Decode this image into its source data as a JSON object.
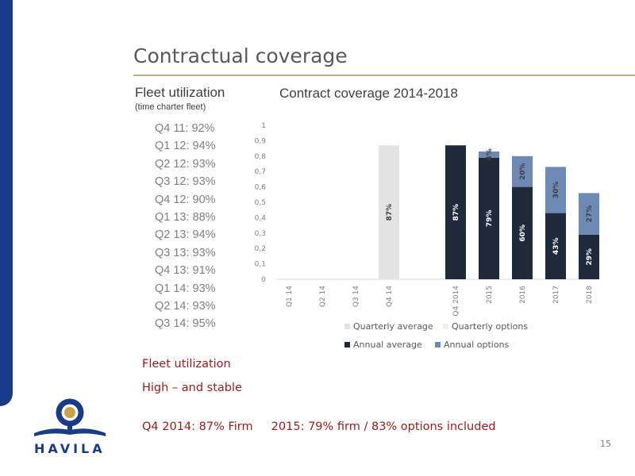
{
  "slide": {
    "title": "Contractual coverage",
    "page_number": "15",
    "brand_name": "HAVILA",
    "brand_color": "#1a3a8c"
  },
  "fleet": {
    "heading": "Fleet utilization",
    "subheading": "(time charter fleet)",
    "items": [
      "Q4 11: 92%",
      "Q1 12: 94%",
      "Q2 12: 93%",
      "Q3 12: 93%",
      "Q4 12: 90%",
      "Q1 13: 88%",
      "Q2 13: 94%",
      "Q3 13: 93%",
      "Q4 13: 91%",
      "Q1 14: 93%",
      "Q2 14: 93%",
      "Q3 14: 95%"
    ]
  },
  "notes": {
    "line1": "Fleet utilization",
    "line2": "High – and stable",
    "line3": "Q4 2014: 87% Firm     2015: 79% firm / 83% options included"
  },
  "chart_data": {
    "type": "bar",
    "title": "Contract coverage 2014-2018",
    "stacked": true,
    "categories": [
      "Q1 14",
      "Q2 14",
      "Q3 14",
      "Q4 14",
      "Q4 2014",
      "2015",
      "2016",
      "2017",
      "2018"
    ],
    "ylim": [
      0,
      1
    ],
    "yticks": [
      "0",
      "0,1",
      "0,2",
      "0,3",
      "0,4",
      "0,5",
      "0,6",
      "0,7",
      "0,8",
      "0,9",
      "1"
    ],
    "grid": false,
    "legend_position": "bottom",
    "series": [
      {
        "name": "Quarterly average",
        "color": "#e3e3e3",
        "values": [
          null,
          null,
          null,
          0.87,
          null,
          null,
          null,
          null,
          null
        ],
        "labels": [
          "",
          "",
          "",
          "87%",
          "",
          "",
          "",
          "",
          ""
        ]
      },
      {
        "name": "Quarterly options",
        "color": "#f0f0f0",
        "values": [
          null,
          null,
          null,
          null,
          null,
          null,
          null,
          null,
          null
        ],
        "labels": [
          "",
          "",
          "",
          "",
          "",
          "",
          "",
          "",
          ""
        ]
      },
      {
        "name": "Annual average",
        "color": "#1f2a3c",
        "values": [
          null,
          null,
          null,
          null,
          0.87,
          0.79,
          0.6,
          0.43,
          0.29
        ],
        "labels": [
          "",
          "",
          "",
          "",
          "87%",
          "79%",
          "60%",
          "43%",
          "29%"
        ]
      },
      {
        "name": "Annual options",
        "color": "#6d8ab4",
        "values": [
          null,
          null,
          null,
          null,
          0,
          0.04,
          0.2,
          0.3,
          0.27
        ],
        "labels": [
          "",
          "",
          "",
          "",
          "",
          "4%",
          "20%",
          "30%",
          "27%"
        ]
      }
    ]
  }
}
